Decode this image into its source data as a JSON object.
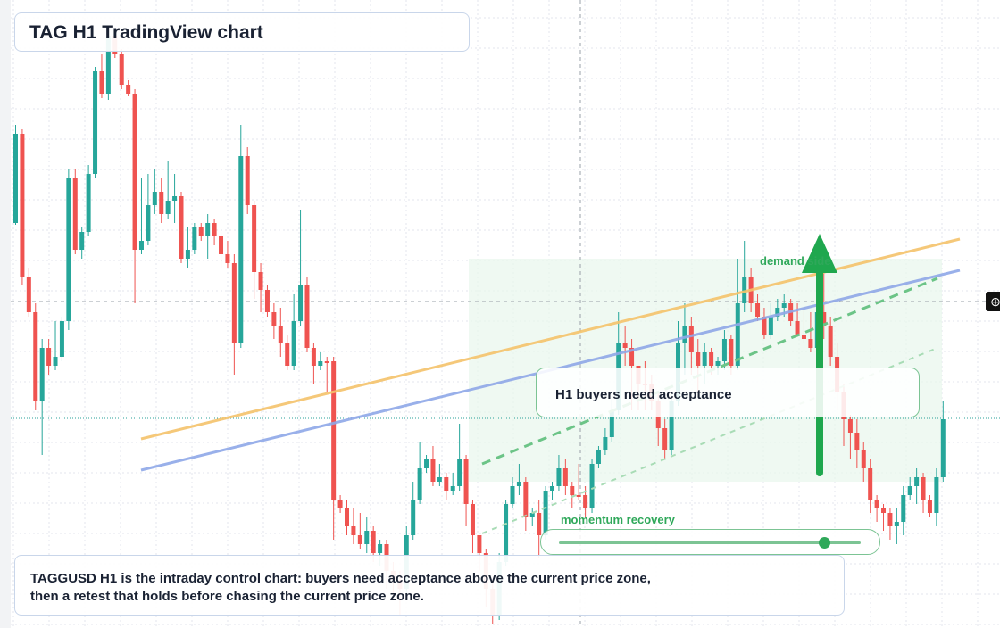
{
  "title": "TAG H1 TradingView chart",
  "callout": "H1 buyers need acceptance",
  "note": "TAGGUSD H1 is the intraday control chart: buyers need acceptance above the current price zone, then a retest that holds before chasing the current price zone.",
  "labels": {
    "momentum": "momentum recovery",
    "demand": "demand side"
  },
  "momentum_level": 0.88,
  "colors": {
    "bull": "#26a69a",
    "bear": "#ef5350",
    "orange_line": "#f5c36b",
    "blue_line": "#8fa8e8",
    "accent_green": "#2fa85a"
  },
  "icons": {
    "crosshair": "crosshair-plus-icon"
  },
  "chart_data": {
    "type": "candlestick",
    "grid": true,
    "candles_ohlc": [
      [
        250,
        150,
        140,
        252
      ],
      [
        150,
        310,
        145,
        320
      ],
      [
        310,
        350,
        300,
        355
      ],
      [
        350,
        450,
        340,
        460
      ],
      [
        450,
        390,
        380,
        510
      ],
      [
        390,
        410,
        380,
        420
      ],
      [
        410,
        400,
        360,
        415
      ],
      [
        400,
        360,
        355,
        405
      ],
      [
        360,
        200,
        190,
        370
      ],
      [
        200,
        280,
        190,
        285
      ],
      [
        280,
        260,
        255,
        290
      ],
      [
        260,
        195,
        185,
        265
      ],
      [
        195,
        80,
        75,
        200
      ],
      [
        80,
        105,
        60,
        110
      ],
      [
        105,
        40,
        30,
        112
      ],
      [
        40,
        60,
        35,
        65
      ],
      [
        60,
        95,
        55,
        100
      ],
      [
        95,
        105,
        90,
        108
      ],
      [
        105,
        280,
        100,
        340
      ],
      [
        280,
        270,
        200,
        285
      ],
      [
        270,
        230,
        195,
        275
      ],
      [
        230,
        215,
        190,
        240
      ],
      [
        215,
        240,
        200,
        250
      ],
      [
        240,
        225,
        180,
        245
      ],
      [
        225,
        220,
        195,
        250
      ],
      [
        220,
        290,
        215,
        295
      ],
      [
        290,
        280,
        255,
        300
      ],
      [
        280,
        255,
        250,
        285
      ],
      [
        255,
        265,
        250,
        270
      ],
      [
        265,
        250,
        240,
        290
      ],
      [
        250,
        265,
        245,
        275
      ],
      [
        265,
        285,
        260,
        300
      ],
      [
        285,
        295,
        270,
        300
      ],
      [
        295,
        385,
        285,
        420
      ],
      [
        385,
        175,
        140,
        390
      ],
      [
        175,
        230,
        165,
        240
      ],
      [
        230,
        305,
        225,
        335
      ],
      [
        305,
        325,
        295,
        350
      ],
      [
        325,
        350,
        320,
        355
      ],
      [
        350,
        365,
        340,
        380
      ],
      [
        365,
        385,
        345,
        400
      ],
      [
        385,
        410,
        375,
        415
      ],
      [
        410,
        360,
        330,
        415
      ],
      [
        360,
        320,
        235,
        365
      ],
      [
        320,
        390,
        310,
        395
      ],
      [
        390,
        410,
        385,
        430
      ],
      [
        410,
        405,
        395,
        415
      ],
      [
        405,
        405,
        400,
        440
      ],
      [
        405,
        560,
        400,
        605
      ],
      [
        560,
        570,
        555,
        575
      ],
      [
        570,
        590,
        560,
        600
      ],
      [
        590,
        600,
        570,
        610
      ],
      [
        600,
        610,
        575,
        615
      ],
      [
        610,
        595,
        580,
        620
      ],
      [
        595,
        620,
        590,
        630
      ],
      [
        620,
        610,
        605,
        635
      ],
      [
        610,
        640,
        605,
        660
      ],
      [
        640,
        650,
        630,
        670
      ],
      [
        650,
        660,
        640,
        690
      ],
      [
        660,
        600,
        590,
        665
      ],
      [
        600,
        560,
        540,
        605
      ],
      [
        560,
        525,
        495,
        565
      ],
      [
        525,
        515,
        510,
        530
      ],
      [
        515,
        540,
        500,
        545
      ],
      [
        540,
        535,
        520,
        545
      ],
      [
        535,
        550,
        530,
        560
      ],
      [
        550,
        545,
        530,
        555
      ],
      [
        545,
        515,
        475,
        550
      ],
      [
        515,
        565,
        510,
        590
      ],
      [
        565,
        600,
        560,
        620
      ],
      [
        600,
        620,
        600,
        640
      ],
      [
        620,
        660,
        615,
        680
      ],
      [
        660,
        690,
        650,
        700
      ],
      [
        690,
        630,
        620,
        695
      ],
      [
        630,
        565,
        560,
        635
      ],
      [
        565,
        545,
        535,
        570
      ],
      [
        545,
        540,
        520,
        555
      ],
      [
        540,
        580,
        535,
        595
      ],
      [
        580,
        575,
        570,
        590
      ],
      [
        575,
        600,
        560,
        625
      ],
      [
        600,
        550,
        545,
        605
      ],
      [
        550,
        545,
        540,
        560
      ],
      [
        545,
        525,
        510,
        550
      ],
      [
        525,
        545,
        515,
        555
      ],
      [
        545,
        555,
        540,
        570
      ],
      [
        555,
        555,
        520,
        560
      ],
      [
        555,
        570,
        545,
        580
      ],
      [
        570,
        520,
        515,
        575
      ],
      [
        520,
        505,
        500,
        525
      ],
      [
        505,
        490,
        480,
        510
      ],
      [
        490,
        460,
        440,
        495
      ],
      [
        460,
        385,
        350,
        465
      ],
      [
        385,
        390,
        365,
        410
      ],
      [
        390,
        410,
        380,
        460
      ],
      [
        410,
        430,
        420,
        460
      ],
      [
        430,
        430,
        405,
        460
      ],
      [
        430,
        450,
        420,
        460
      ],
      [
        450,
        480,
        440,
        500
      ],
      [
        480,
        505,
        470,
        515
      ],
      [
        505,
        450,
        440,
        510
      ],
      [
        450,
        385,
        360,
        455
      ],
      [
        385,
        365,
        340,
        420
      ],
      [
        365,
        395,
        355,
        420
      ],
      [
        395,
        410,
        380,
        440
      ],
      [
        410,
        395,
        385,
        430
      ],
      [
        395,
        410,
        390,
        420
      ],
      [
        410,
        405,
        400,
        420
      ],
      [
        405,
        380,
        370,
        415
      ],
      [
        380,
        410,
        375,
        420
      ],
      [
        410,
        340,
        290,
        415
      ],
      [
        340,
        310,
        270,
        350
      ],
      [
        310,
        340,
        300,
        350
      ],
      [
        340,
        355,
        330,
        360
      ],
      [
        355,
        375,
        345,
        380
      ],
      [
        375,
        355,
        340,
        380
      ],
      [
        355,
        345,
        335,
        360
      ],
      [
        345,
        340,
        330,
        355
      ],
      [
        340,
        360,
        335,
        365
      ],
      [
        360,
        375,
        340,
        375
      ],
      [
        375,
        380,
        345,
        385
      ],
      [
        380,
        390,
        350,
        395
      ],
      [
        390,
        350,
        340,
        400
      ],
      [
        350,
        365,
        300,
        380
      ],
      [
        365,
        400,
        355,
        410
      ],
      [
        400,
        440,
        385,
        460
      ],
      [
        440,
        470,
        430,
        500
      ],
      [
        470,
        485,
        465,
        515
      ],
      [
        485,
        505,
        470,
        525
      ],
      [
        505,
        525,
        495,
        540
      ],
      [
        525,
        560,
        515,
        575
      ],
      [
        560,
        570,
        555,
        585
      ],
      [
        570,
        575,
        565,
        595
      ],
      [
        575,
        590,
        570,
        605
      ],
      [
        590,
        585,
        570,
        610
      ],
      [
        585,
        555,
        545,
        600
      ],
      [
        555,
        545,
        535,
        560
      ],
      [
        545,
        535,
        525,
        565
      ],
      [
        535,
        560,
        530,
        575
      ],
      [
        560,
        575,
        555,
        580
      ],
      [
        575,
        535,
        525,
        590
      ],
      [
        535,
        470,
        450,
        540
      ]
    ],
    "lines": [
      {
        "name": "orange-trendline",
        "from": [
          0,
          492
        ],
        "to": [
          147,
          268
        ]
      },
      {
        "name": "blue-trendline",
        "from": [
          0,
          527
        ],
        "to": [
          147,
          303
        ]
      }
    ]
  }
}
